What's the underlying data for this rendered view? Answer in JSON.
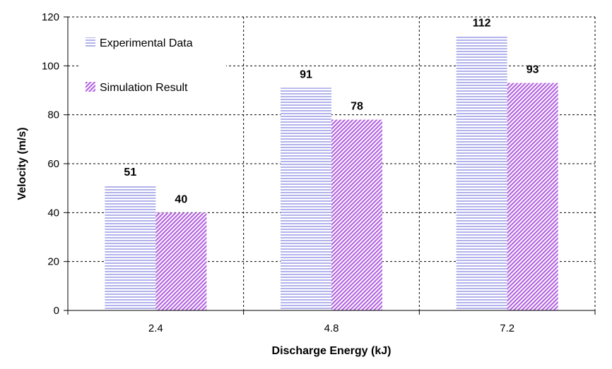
{
  "chart_data": {
    "type": "bar",
    "categories": [
      "2.4",
      "4.8",
      "7.2"
    ],
    "series": [
      {
        "name": "Experimental Data",
        "values": [
          51,
          91,
          112
        ],
        "color": "#8080e0",
        "pattern": "horizontal-lines"
      },
      {
        "name": "Simulation Result",
        "values": [
          40,
          78,
          93
        ],
        "color": "#b060e0",
        "pattern": "diagonal-lines"
      }
    ],
    "title": "",
    "xlabel": "Discharge Energy (kJ)",
    "ylabel": "Velocity (m/s)",
    "ylim": [
      0,
      120
    ],
    "yticks": [
      0,
      20,
      40,
      60,
      80,
      100,
      120
    ],
    "grid": "dashed",
    "legend": "top-left",
    "data_labels": true
  }
}
